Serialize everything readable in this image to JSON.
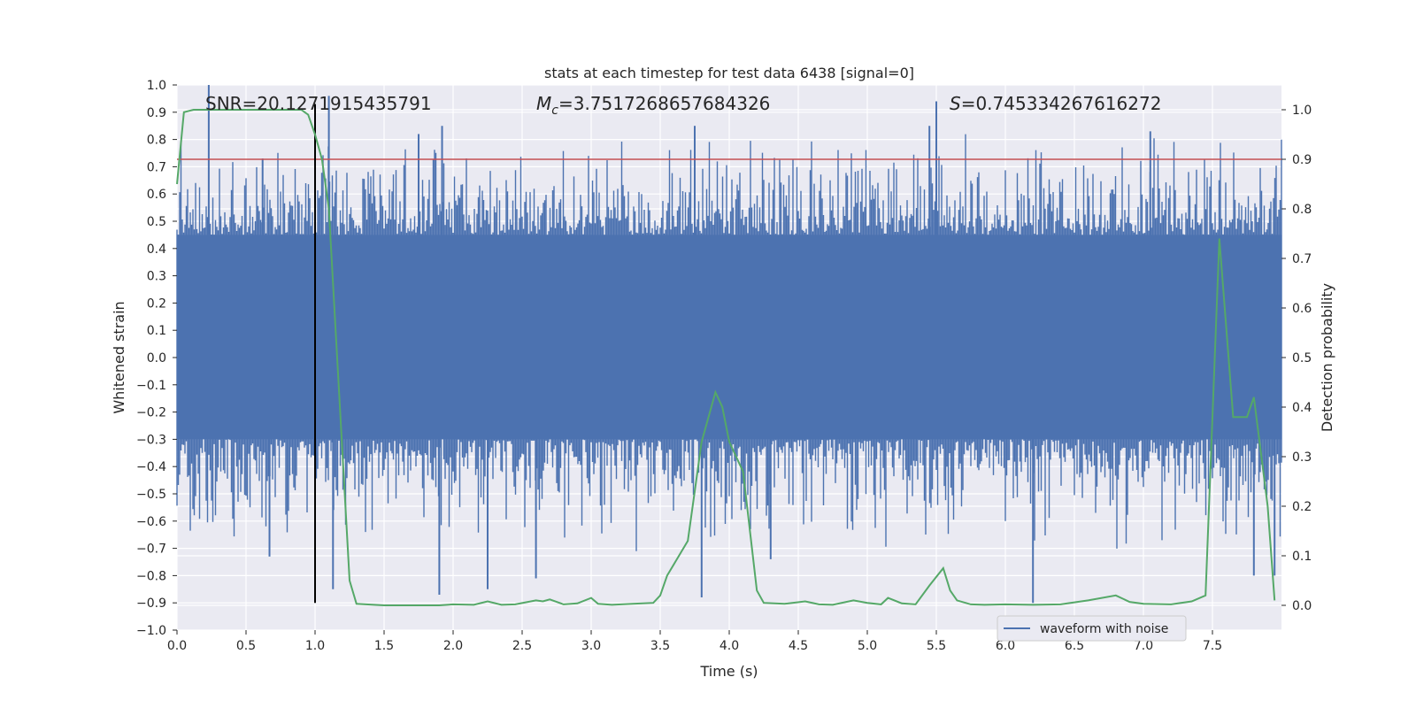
{
  "chart_data": {
    "type": "line",
    "title": "stats at each timestep for test data 6438 [signal=0]",
    "xlabel": "Time (s)",
    "ylabel_left": "Whitened strain",
    "ylabel_right": "Detection probability",
    "xlim": [
      0.0,
      8.0
    ],
    "ylim_left": [
      -1.0,
      1.0
    ],
    "ylim_right": [
      -0.05,
      1.05
    ],
    "grid": true,
    "x_ticks": [
      "0.0",
      "0.5",
      "1.0",
      "1.5",
      "2.0",
      "2.5",
      "3.0",
      "3.5",
      "4.0",
      "4.5",
      "5.0",
      "5.5",
      "6.0",
      "6.5",
      "7.0",
      "7.5"
    ],
    "x_tick_values": [
      0.0,
      0.5,
      1.0,
      1.5,
      2.0,
      2.5,
      3.0,
      3.5,
      4.0,
      4.5,
      5.0,
      5.5,
      6.0,
      6.5,
      7.0,
      7.5
    ],
    "y_left_ticks": [
      "1.0",
      "0.9",
      "0.8",
      "0.7",
      "0.6",
      "0.5",
      "0.4",
      "0.3",
      "0.2",
      "0.1",
      "0.0",
      "−0.1",
      "−0.2",
      "−0.3",
      "−0.4",
      "−0.5",
      "−0.6",
      "−0.7",
      "−0.8",
      "−0.9",
      "−1.0"
    ],
    "y_left_tick_values": [
      1.0,
      0.9,
      0.8,
      0.7,
      0.6,
      0.5,
      0.4,
      0.3,
      0.2,
      0.1,
      0.0,
      -0.1,
      -0.2,
      -0.3,
      -0.4,
      -0.5,
      -0.6,
      -0.7,
      -0.8,
      -0.9,
      -1.0
    ],
    "y_right_ticks": [
      "1.0",
      "0.9",
      "0.8",
      "0.7",
      "0.6",
      "0.5",
      "0.4",
      "0.3",
      "0.2",
      "0.1",
      "0.0"
    ],
    "y_right_tick_values": [
      1.0,
      0.9,
      0.8,
      0.7,
      0.6,
      0.5,
      0.4,
      0.3,
      0.2,
      0.1,
      0.0
    ],
    "annotations": {
      "snr": "SNR=20.1271915435791",
      "mc_prefix": "M",
      "mc_sub": "c",
      "mc_value": "=3.7517268657684326",
      "s_prefix": "S",
      "s_value": "=0.745334267616272"
    },
    "legend": {
      "label": "waveform with noise",
      "placement": "lower-right"
    },
    "series": [
      {
        "name": "waveform with noise",
        "axis": "left",
        "color": "#4c72b0",
        "style": "dense noise band",
        "core_band": [
          -0.3,
          0.45
        ],
        "spikes": [
          {
            "x": 0.23,
            "y": 1.0
          },
          {
            "x": 0.62,
            "y": 0.73
          },
          {
            "x": 0.67,
            "y": -0.73
          },
          {
            "x": 1.1,
            "y": 0.96
          },
          {
            "x": 1.13,
            "y": -0.85
          },
          {
            "x": 1.75,
            "y": 0.82
          },
          {
            "x": 1.92,
            "y": 0.85
          },
          {
            "x": 1.9,
            "y": -0.87
          },
          {
            "x": 2.25,
            "y": -0.85
          },
          {
            "x": 2.6,
            "y": -0.81
          },
          {
            "x": 3.75,
            "y": 0.85
          },
          {
            "x": 3.8,
            "y": -0.88
          },
          {
            "x": 4.3,
            "y": -0.74
          },
          {
            "x": 5.45,
            "y": 0.85
          },
          {
            "x": 5.5,
            "y": 0.94
          },
          {
            "x": 6.2,
            "y": -0.9
          },
          {
            "x": 7.05,
            "y": 0.83
          },
          {
            "x": 7.8,
            "y": -0.8
          },
          {
            "x": 7.95,
            "y": -0.8
          }
        ]
      },
      {
        "name": "detection probability",
        "axis": "right",
        "color": "#55a868",
        "x": [
          0.0,
          0.05,
          0.12,
          0.3,
          0.6,
          0.9,
          0.95,
          1.0,
          1.05,
          1.1,
          1.15,
          1.25,
          1.3,
          1.5,
          1.9,
          2.0,
          2.15,
          2.25,
          2.35,
          2.45,
          2.6,
          2.65,
          2.7,
          2.8,
          2.9,
          3.0,
          3.05,
          3.15,
          3.3,
          3.45,
          3.5,
          3.55,
          3.7,
          3.8,
          3.9,
          3.95,
          4.0,
          4.1,
          4.2,
          4.25,
          4.4,
          4.55,
          4.65,
          4.75,
          4.9,
          5.0,
          5.1,
          5.15,
          5.25,
          5.35,
          5.45,
          5.55,
          5.6,
          5.65,
          5.75,
          5.85,
          6.0,
          6.2,
          6.4,
          6.6,
          6.8,
          6.9,
          7.0,
          7.2,
          7.35,
          7.45,
          7.55,
          7.65,
          7.75,
          7.8,
          7.9,
          7.95
        ],
        "y": [
          0.85,
          0.995,
          1.0,
          1.0,
          1.0,
          1.0,
          0.99,
          0.95,
          0.9,
          0.8,
          0.55,
          0.05,
          0.003,
          0.0,
          0.0,
          0.002,
          0.001,
          0.008,
          0.001,
          0.002,
          0.01,
          0.008,
          0.012,
          0.002,
          0.004,
          0.015,
          0.003,
          0.001,
          0.003,
          0.005,
          0.02,
          0.06,
          0.13,
          0.33,
          0.43,
          0.4,
          0.33,
          0.27,
          0.03,
          0.005,
          0.003,
          0.008,
          0.002,
          0.001,
          0.01,
          0.005,
          0.002,
          0.015,
          0.004,
          0.002,
          0.04,
          0.075,
          0.03,
          0.01,
          0.002,
          0.001,
          0.002,
          0.001,
          0.002,
          0.01,
          0.02,
          0.007,
          0.003,
          0.002,
          0.008,
          0.02,
          0.74,
          0.38,
          0.38,
          0.42,
          0.2,
          0.01
        ]
      }
    ],
    "threshold": {
      "value": 0.9,
      "axis": "right",
      "color": "#c44e52"
    },
    "marker_line": {
      "x": 1.0,
      "y_from": -0.9,
      "y_to": 0.93,
      "color": "#000000"
    }
  }
}
